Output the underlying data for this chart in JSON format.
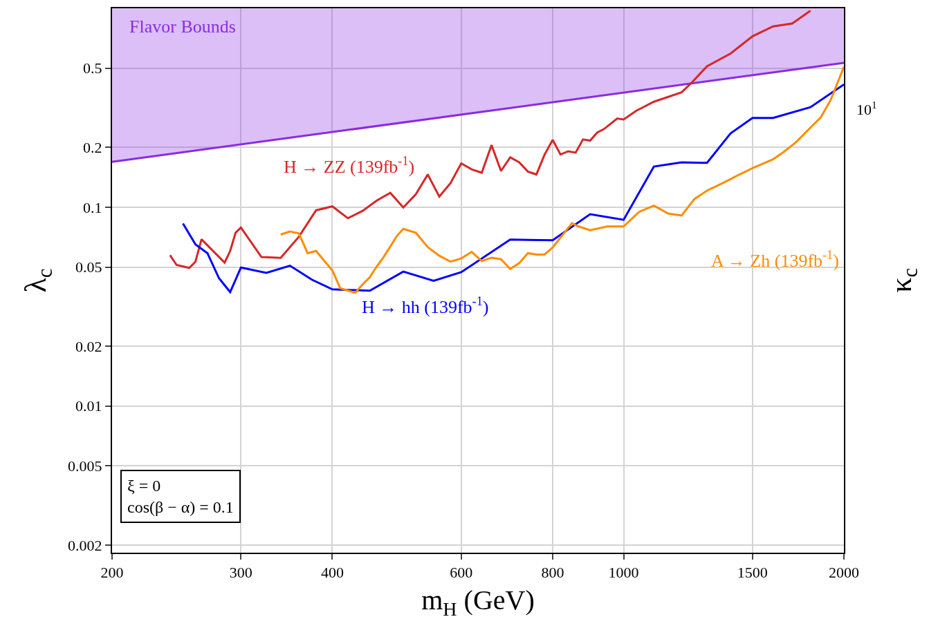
{
  "chart_data": {
    "type": "line",
    "xlabel": "m$_{H}$ (GeV)",
    "ylabel": "λ$_{c}$",
    "y2label": "κ$_{c}$",
    "log": "xy",
    "grid": true,
    "legend": false,
    "marker": "none",
    "line_style": "solid",
    "xlim": [
      200,
      2000
    ],
    "xticks": [
      200,
      300,
      400,
      600,
      800,
      1000,
      1500,
      2000
    ],
    "ylim": [
      0.00183,
      1.0
    ],
    "yticks": [
      0.002,
      0.005,
      0.01,
      0.02,
      0.05,
      0.1,
      0.2,
      0.5
    ],
    "annotations": [
      "ξ = 0\ncos(β − α) = 0.1",
      "10$^{1}$"
    ],
    "series": [
      {
        "name": "Flavor Bounds",
        "color": "#8a2be2",
        "x": [
          200,
          2000
        ],
        "values": [
          0.169,
          0.532
        ],
        "lower": [
          0.169,
          0.532
        ],
        "upper": [
          1.0,
          1.0
        ]
      },
      {
        "name": "H → ZZ (139fb$^{-1}$)",
        "color": "#d62728",
        "x": [
          240,
          245,
          255,
          260,
          265,
          285,
          290,
          295,
          300,
          320,
          340,
          360,
          380,
          400,
          420,
          440,
          460,
          480,
          500,
          520,
          540,
          560,
          580,
          600,
          620,
          640,
          660,
          680,
          700,
          720,
          740,
          760,
          780,
          800,
          820,
          840,
          860,
          880,
          900,
          920,
          940,
          980,
          1000,
          1040,
          1100,
          1200,
          1240,
          1300,
          1400,
          1500,
          1600,
          1700,
          1800
        ],
        "values": [
          0.0573,
          0.0512,
          0.0495,
          0.0532,
          0.0689,
          0.0526,
          0.0602,
          0.0744,
          0.079,
          0.0561,
          0.0556,
          0.071,
          0.0964,
          0.1009,
          0.088,
          0.0958,
          0.108,
          0.118,
          0.0997,
          0.116,
          0.146,
          0.113,
          0.132,
          0.166,
          0.155,
          0.149,
          0.205,
          0.152,
          0.178,
          0.168,
          0.151,
          0.146,
          0.184,
          0.218,
          0.184,
          0.191,
          0.188,
          0.219,
          0.216,
          0.237,
          0.247,
          0.279,
          0.276,
          0.305,
          0.339,
          0.378,
          0.424,
          0.511,
          0.592,
          0.723,
          0.811,
          0.838,
          0.972
        ]
      },
      {
        "name": "H → hh (139fb$^{-1}$)",
        "color": "#0000ff",
        "x": [
          250,
          260,
          270,
          280,
          290,
          300,
          325,
          350,
          375,
          400,
          450,
          500,
          550,
          600,
          700,
          800,
          900,
          1000,
          1100,
          1200,
          1300,
          1400,
          1500,
          1600,
          1800,
          2000
        ],
        "values": [
          0.0828,
          0.065,
          0.0587,
          0.0439,
          0.0374,
          0.0497,
          0.0467,
          0.0508,
          0.0432,
          0.0386,
          0.038,
          0.0474,
          0.0426,
          0.0471,
          0.0687,
          0.0682,
          0.0922,
          0.0864,
          0.16,
          0.168,
          0.167,
          0.235,
          0.281,
          0.281,
          0.318,
          0.414
        ]
      },
      {
        "name": "A → Zh (139fb$^{-1}$)",
        "color": "#ff8c00",
        "x": [
          340,
          350,
          360,
          370,
          380,
          390,
          400,
          410,
          430,
          440,
          450,
          460,
          470,
          490,
          500,
          520,
          540,
          560,
          580,
          600,
          620,
          640,
          660,
          680,
          700,
          720,
          740,
          760,
          780,
          800,
          850,
          865,
          900,
          950,
          1000,
          1050,
          1100,
          1150,
          1200,
          1250,
          1300,
          1365,
          1440,
          1500,
          1600,
          1650,
          1720,
          1800,
          1860,
          1920,
          2000
        ],
        "values": [
          0.0728,
          0.0755,
          0.0738,
          0.0587,
          0.0602,
          0.0536,
          0.0481,
          0.0391,
          0.0371,
          0.0409,
          0.0444,
          0.0504,
          0.0561,
          0.0716,
          0.0778,
          0.0744,
          0.063,
          0.057,
          0.0532,
          0.0552,
          0.0596,
          0.0536,
          0.0557,
          0.0547,
          0.0489,
          0.0523,
          0.0587,
          0.0577,
          0.0579,
          0.0627,
          0.083,
          0.0803,
          0.0766,
          0.08,
          0.08,
          0.0947,
          0.1018,
          0.0929,
          0.0908,
          0.11,
          0.121,
          0.132,
          0.146,
          0.157,
          0.174,
          0.188,
          0.212,
          0.251,
          0.283,
          0.348,
          0.508
        ]
      }
    ]
  }
}
